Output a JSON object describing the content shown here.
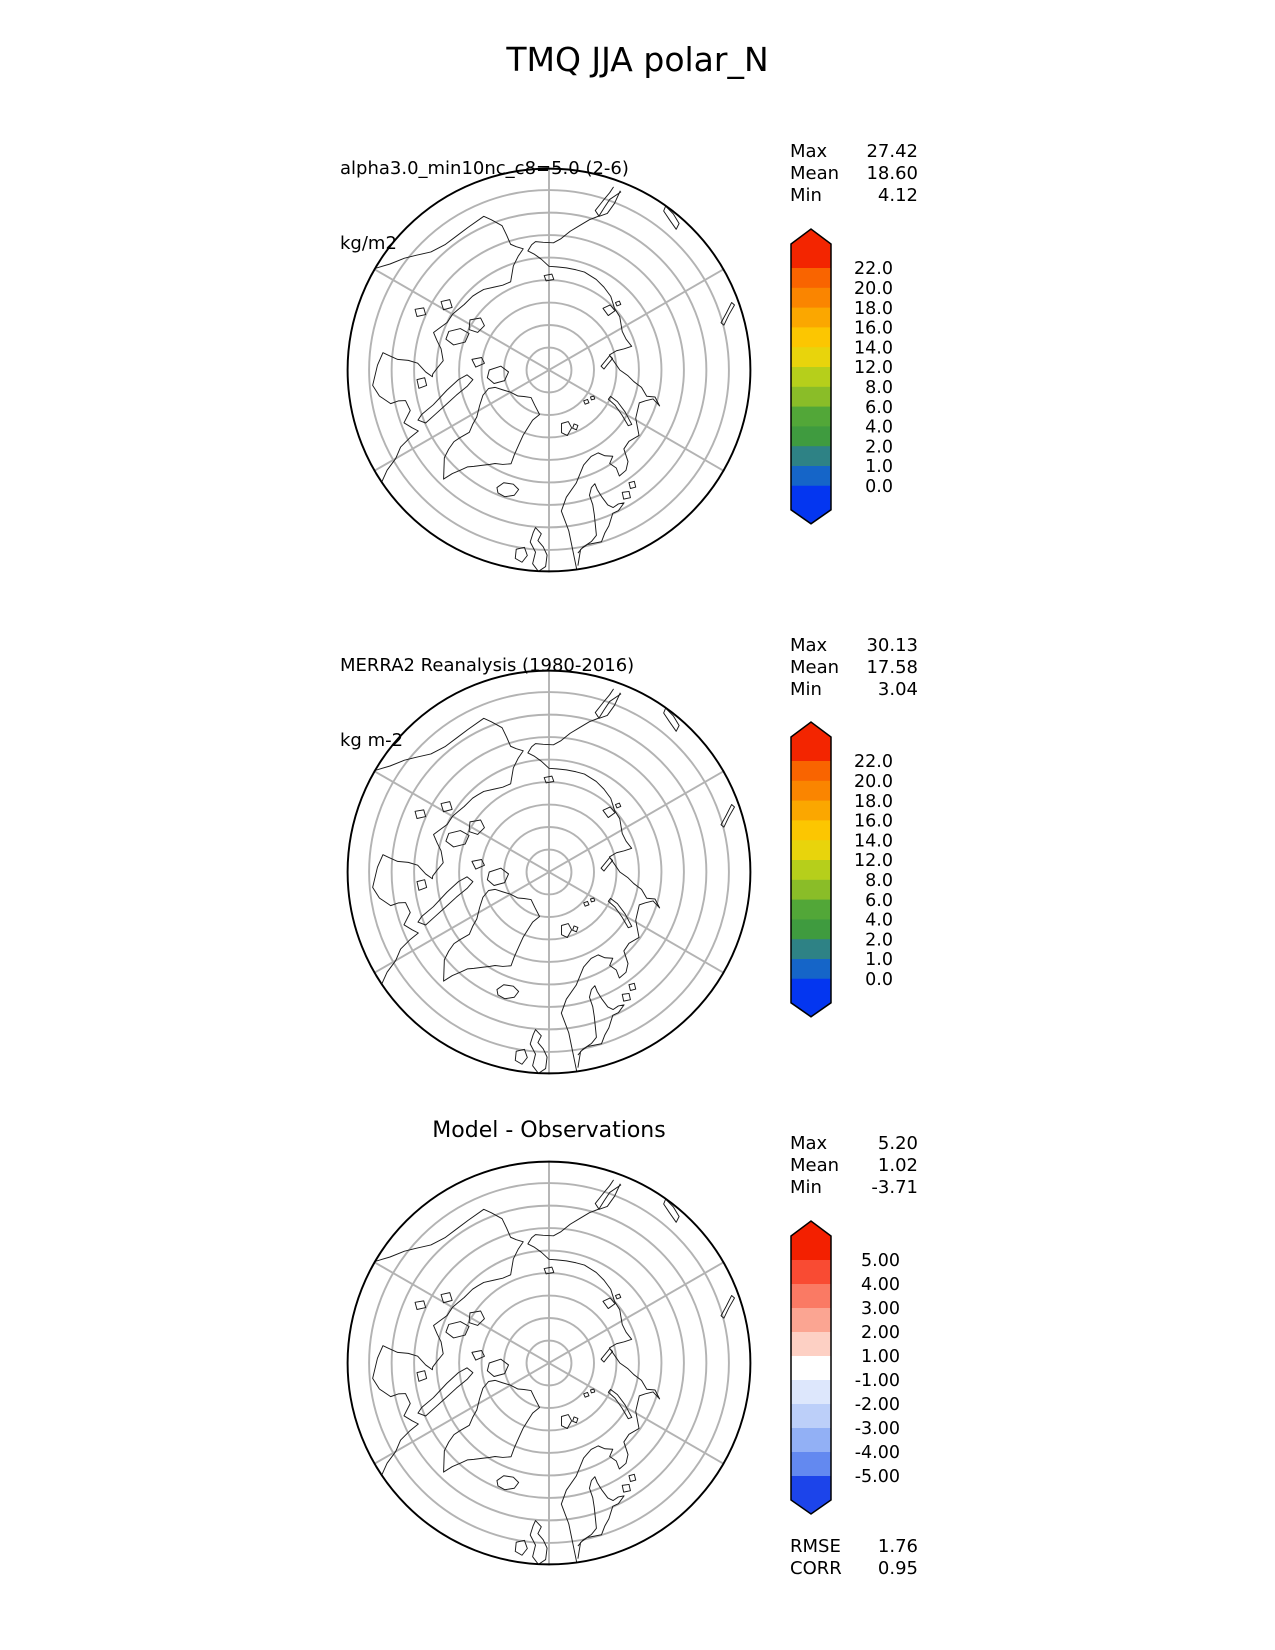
{
  "title": "TMQ JJA polar_N",
  "panels": [
    {
      "name": "model",
      "title": "alpha3.0_min10nc_c8=5.0 (2-6)",
      "units": "kg/m2",
      "stats": [
        {
          "label": "Max",
          "value": "27.42"
        },
        {
          "label": "Mean",
          "value": "18.60"
        },
        {
          "label": "Min",
          "value": "4.12"
        }
      ],
      "colorbar": {
        "tick_labels": [
          "22.0",
          "20.0",
          "18.0",
          "16.0",
          "14.0",
          "12.0",
          "8.0",
          "6.0",
          "4.0",
          "2.0",
          "1.0",
          "0.0"
        ],
        "segment_colors_top_to_bottom": [
          "#f96400",
          "#fa8500",
          "#fba700",
          "#fcc601",
          "#e8d40c",
          "#b6cf1b",
          "#8abd28",
          "#52a738",
          "#3f9b3f",
          "#2e8285",
          "#1565c8"
        ],
        "extend_top_color": "#f32500",
        "extend_bottom_color": "#0436f0"
      }
    },
    {
      "name": "observations",
      "title": "MERRA2 Reanalysis (1980-2016)",
      "units": "kg m-2",
      "stats": [
        {
          "label": "Max",
          "value": "30.13"
        },
        {
          "label": "Mean",
          "value": "17.58"
        },
        {
          "label": "Min",
          "value": "3.04"
        }
      ],
      "colorbar": {
        "tick_labels": [
          "22.0",
          "20.0",
          "18.0",
          "16.0",
          "14.0",
          "12.0",
          "8.0",
          "6.0",
          "4.0",
          "2.0",
          "1.0",
          "0.0"
        ],
        "segment_colors_top_to_bottom": [
          "#f96400",
          "#fa8500",
          "#fba700",
          "#fcc601",
          "#e8d40c",
          "#b6cf1b",
          "#8abd28",
          "#52a738",
          "#3f9b3f",
          "#2e8285",
          "#1565c8"
        ],
        "extend_top_color": "#f32500",
        "extend_bottom_color": "#0436f0"
      }
    },
    {
      "name": "difference",
      "title": "Model - Observations",
      "stats": [
        {
          "label": "Max",
          "value": "5.20"
        },
        {
          "label": "Mean",
          "value": "1.02"
        },
        {
          "label": "Min",
          "value": "-3.71"
        }
      ],
      "colorbar": {
        "tick_labels": [
          "5.00",
          "4.00",
          "3.00",
          "2.00",
          "1.00",
          "-1.00",
          "-2.00",
          "-3.00",
          "-4.00",
          "-5.00"
        ],
        "segment_colors_top_to_bottom": [
          "#f94b33",
          "#fa7a64",
          "#fba592",
          "#fdd0c4",
          "#ffffff",
          "#dde7fc",
          "#bccff9",
          "#92b0f5",
          "#6389f0"
        ],
        "extend_top_color": "#f32000",
        "extend_bottom_color": "#1c44ea"
      }
    }
  ],
  "footer_stats": [
    {
      "label": "RMSE",
      "value": "1.76"
    },
    {
      "label": "CORR",
      "value": "0.95"
    }
  ],
  "chart_data": {
    "type": "heatmap",
    "title": "TMQ JJA polar_N",
    "projection": "north_polar_stereographic",
    "legend_position": "right",
    "panels": [
      {
        "title": "alpha3.0_min10nc_c8=5.0 (2-6)",
        "units": "kg/m2",
        "max": 27.42,
        "mean": 18.6,
        "min": 4.12,
        "contour_levels": [
          0.0,
          1.0,
          2.0,
          4.0,
          6.0,
          8.0,
          12.0,
          14.0,
          16.0,
          18.0,
          20.0,
          22.0
        ],
        "colormap": "rainbow blue-to-red, extended both ends"
      },
      {
        "title": "MERRA2 Reanalysis (1980-2016)",
        "units": "kg m-2",
        "max": 30.13,
        "mean": 17.58,
        "min": 3.04,
        "contour_levels": [
          0.0,
          1.0,
          2.0,
          4.0,
          6.0,
          8.0,
          12.0,
          14.0,
          16.0,
          18.0,
          20.0,
          22.0
        ],
        "colormap": "rainbow blue-to-red, extended both ends"
      },
      {
        "title": "Model - Observations",
        "max": 5.2,
        "mean": 1.02,
        "min": -3.71,
        "rmse": 1.76,
        "corr": 0.95,
        "contour_levels": [
          -5.0,
          -4.0,
          -3.0,
          -2.0,
          -1.0,
          1.0,
          2.0,
          3.0,
          4.0,
          5.0
        ],
        "colormap": "blue-white-red diverging, extended both ends"
      }
    ]
  }
}
